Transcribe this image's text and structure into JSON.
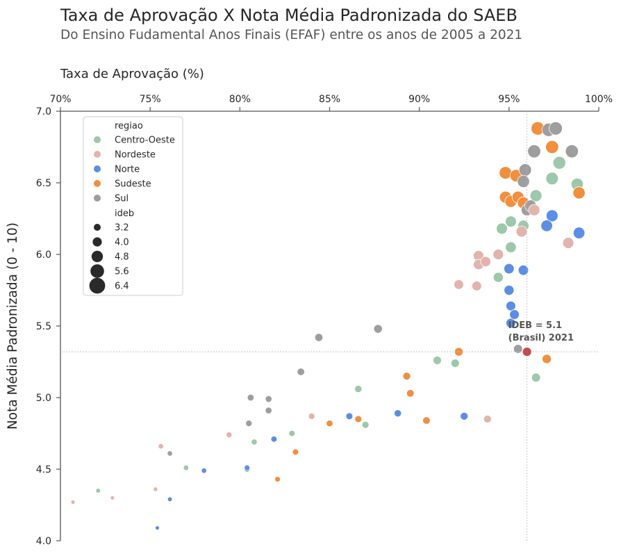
{
  "title": "Taxa de Aprovação X Nota Média Padronizada do SAEB",
  "subtitle": "Do Ensino Fudamental Anos Finais (EFAF) entre os anos de 2005 a 2021",
  "chart_data": {
    "type": "scatter",
    "title": "Taxa de Aprovação X Nota Média Padronizada do SAEB",
    "subtitle": "Do Ensino Fudamental Anos Finais (EFAF) entre os anos de 2005 a 2021",
    "xlabel": "Taxa de Aprovação (%)",
    "ylabel": "Nota Média Padronizada (0 - 10)",
    "xlim": [
      70,
      100
    ],
    "ylim": [
      4.0,
      7.0
    ],
    "x_axis_position": "top",
    "x_ticks": [
      "70%",
      "75%",
      "80%",
      "85%",
      "90%",
      "95%",
      "100%"
    ],
    "y_ticks": [
      "4.0",
      "4.5",
      "5.0",
      "5.5",
      "6.0",
      "6.5",
      "7.0"
    ],
    "grid": false,
    "legend": {
      "placement": "top-left",
      "hue_title": "regiao",
      "size_title": "ideb",
      "hue_entries": [
        {
          "name": "Centro-Oeste",
          "color": "#9bc9a9"
        },
        {
          "name": "Nordeste",
          "color": "#e2b4ad"
        },
        {
          "name": "Norte",
          "color": "#5b8ee6"
        },
        {
          "name": "Sudeste",
          "color": "#f28e3c"
        },
        {
          "name": "Sul",
          "color": "#9e9e9e"
        }
      ],
      "size_entries": [
        "3.2",
        "4.0",
        "4.8",
        "5.6",
        "6.4"
      ]
    },
    "annotation": {
      "text_line1": "IDEB = 5.1",
      "text_line2": "(Brasil) 2021",
      "x": 96.0,
      "y": 5.32,
      "color": "#c94a4a"
    },
    "series": [
      {
        "name": "Centro-Oeste",
        "color": "#9bc9a9",
        "points": [
          [
            72.1,
            4.35,
            3.3
          ],
          [
            77.0,
            4.51,
            3.5
          ],
          [
            80.8,
            4.69,
            3.7
          ],
          [
            82.9,
            4.75,
            3.8
          ],
          [
            86.6,
            5.06,
            4.2
          ],
          [
            87.0,
            4.81,
            4.1
          ],
          [
            91.0,
            5.26,
            4.6
          ],
          [
            92.0,
            5.24,
            4.6
          ],
          [
            94.4,
            5.84,
            5.2
          ],
          [
            94.6,
            6.18,
            5.6
          ],
          [
            95.1,
            6.05,
            5.5
          ],
          [
            95.1,
            6.23,
            5.6
          ],
          [
            95.8,
            6.2,
            5.6
          ],
          [
            96.5,
            6.41,
            5.9
          ],
          [
            96.5,
            5.14,
            4.8
          ],
          [
            97.4,
            6.53,
            6.1
          ],
          [
            97.8,
            6.64,
            6.2
          ],
          [
            98.8,
            6.49,
            6.0
          ]
        ]
      },
      {
        "name": "Nordeste",
        "color": "#e2b4ad",
        "points": [
          [
            70.7,
            4.27,
            3.1
          ],
          [
            72.9,
            4.3,
            3.1
          ],
          [
            75.3,
            4.36,
            3.2
          ],
          [
            75.6,
            4.66,
            3.5
          ],
          [
            79.4,
            4.74,
            3.7
          ],
          [
            84.0,
            4.87,
            3.9
          ],
          [
            92.2,
            5.79,
            5.1
          ],
          [
            93.2,
            5.78,
            5.1
          ],
          [
            93.3,
            5.93,
            5.3
          ],
          [
            93.3,
            5.99,
            5.4
          ],
          [
            93.7,
            5.95,
            5.3
          ],
          [
            93.8,
            4.85,
            4.4
          ],
          [
            94.4,
            6.0,
            5.4
          ],
          [
            95.7,
            6.16,
            5.6
          ],
          [
            96.4,
            6.31,
            5.7
          ],
          [
            98.3,
            6.08,
            5.6
          ]
        ]
      },
      {
        "name": "Norte",
        "color": "#5b8ee6",
        "points": [
          [
            75.4,
            4.09,
            3.1
          ],
          [
            76.1,
            4.29,
            3.3
          ],
          [
            78.0,
            4.49,
            3.5
          ],
          [
            80.4,
            4.5,
            3.6
          ],
          [
            80.4,
            4.51,
            3.6
          ],
          [
            81.9,
            4.71,
            3.8
          ],
          [
            86.1,
            4.87,
            4.1
          ],
          [
            88.8,
            4.89,
            4.2
          ],
          [
            92.5,
            4.87,
            4.4
          ],
          [
            95.0,
            5.75,
            5.2
          ],
          [
            95.0,
            5.9,
            5.3
          ],
          [
            95.1,
            5.52,
            5.1
          ],
          [
            95.1,
            5.64,
            5.1
          ],
          [
            95.3,
            5.58,
            5.1
          ],
          [
            95.8,
            5.89,
            5.3
          ],
          [
            97.1,
            6.2,
            5.8
          ],
          [
            97.4,
            6.27,
            5.9
          ],
          [
            98.9,
            6.15,
            5.8
          ]
        ]
      },
      {
        "name": "Sudeste",
        "color": "#f28e3c",
        "points": [
          [
            82.1,
            4.43,
            3.6
          ],
          [
            83.1,
            4.62,
            3.8
          ],
          [
            85.0,
            4.82,
            4.0
          ],
          [
            86.6,
            4.85,
            4.1
          ],
          [
            89.3,
            5.15,
            4.4
          ],
          [
            89.5,
            5.03,
            4.3
          ],
          [
            90.4,
            4.84,
            4.3
          ],
          [
            92.2,
            5.32,
            4.7
          ],
          [
            94.8,
            6.4,
            5.9
          ],
          [
            94.8,
            6.57,
            6.1
          ],
          [
            95.1,
            6.37,
            5.9
          ],
          [
            95.4,
            6.55,
            6.1
          ],
          [
            95.5,
            6.4,
            5.9
          ],
          [
            95.8,
            6.36,
            5.9
          ],
          [
            97.1,
            5.27,
            4.9
          ],
          [
            96.6,
            6.88,
            6.4
          ],
          [
            97.4,
            6.75,
            6.3
          ],
          [
            98.9,
            6.43,
            6.0
          ]
        ]
      },
      {
        "name": "Sul",
        "color": "#9e9e9e",
        "points": [
          [
            76.1,
            4.61,
            3.5
          ],
          [
            80.5,
            4.82,
            3.9
          ],
          [
            80.6,
            5.0,
            4.0
          ],
          [
            81.6,
            4.91,
            4.0
          ],
          [
            81.6,
            4.99,
            4.0
          ],
          [
            83.4,
            5.18,
            4.3
          ],
          [
            84.4,
            5.42,
            4.5
          ],
          [
            87.7,
            5.48,
            4.7
          ],
          [
            95.5,
            5.34,
            4.8
          ],
          [
            95.8,
            6.51,
            6.0
          ],
          [
            95.9,
            6.59,
            6.1
          ],
          [
            96.0,
            6.31,
            5.8
          ],
          [
            96.2,
            6.34,
            5.8
          ],
          [
            96.4,
            6.72,
            6.3
          ],
          [
            97.2,
            6.87,
            6.4
          ],
          [
            97.6,
            6.88,
            6.4
          ],
          [
            98.5,
            6.72,
            6.3
          ]
        ]
      }
    ]
  }
}
